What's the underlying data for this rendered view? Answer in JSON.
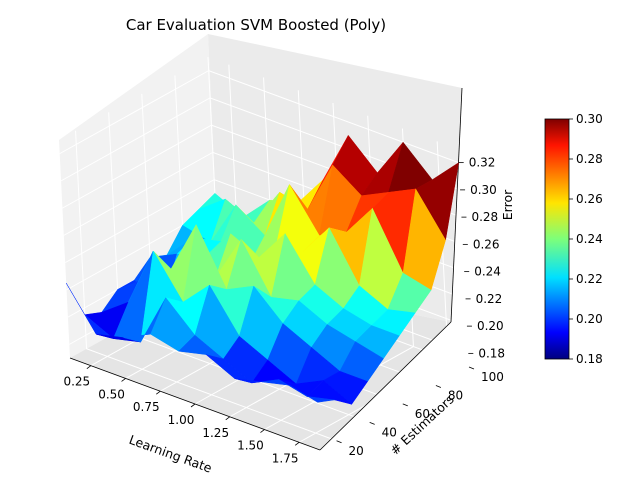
{
  "chart_data": {
    "type": "surface",
    "title": "Car Evaluation SVM Boosted (Poly)",
    "xlabel": "Learning Rate",
    "ylabel": "# Estimators",
    "zlabel": "Error",
    "x_ticks": [
      "0.25",
      "0.50",
      "0.75",
      "1.00",
      "1.25",
      "1.50",
      "1.75"
    ],
    "y_ticks": [
      "20",
      "40",
      "60",
      "80",
      "100"
    ],
    "z_ticks": [
      "0.18",
      "0.20",
      "0.22",
      "0.24",
      "0.26",
      "0.28",
      "0.30",
      "0.32"
    ],
    "colorbar_ticks": [
      "0.18",
      "0.20",
      "0.22",
      "0.24",
      "0.26",
      "0.28",
      "0.30"
    ],
    "colormap": "jet",
    "xlim": [
      0.1,
      1.9
    ],
    "ylim": [
      10,
      100
    ],
    "zlim": [
      0.17,
      0.33
    ],
    "color_range": [
      0.18,
      0.3
    ],
    "x": [
      0.1,
      0.3,
      0.5,
      0.7,
      0.9,
      1.1,
      1.3,
      1.5,
      1.7,
      1.9
    ],
    "y": [
      10,
      20,
      30,
      40,
      50,
      60,
      70,
      80,
      90,
      100
    ],
    "z": [
      [
        0.225,
        0.195,
        0.2,
        0.21,
        0.205,
        0.21,
        0.2,
        0.205,
        0.21,
        0.205
      ],
      [
        0.195,
        0.185,
        0.19,
        0.23,
        0.21,
        0.2,
        0.19,
        0.2,
        0.195,
        0.2
      ],
      [
        0.19,
        0.205,
        0.25,
        0.22,
        0.24,
        0.21,
        0.2,
        0.19,
        0.2,
        0.19
      ],
      [
        0.2,
        0.215,
        0.23,
        0.27,
        0.23,
        0.24,
        0.22,
        0.21,
        0.2,
        0.2
      ],
      [
        0.2,
        0.19,
        0.235,
        0.225,
        0.26,
        0.225,
        0.23,
        0.22,
        0.215,
        0.21
      ],
      [
        0.21,
        0.22,
        0.225,
        0.25,
        0.24,
        0.265,
        0.235,
        0.225,
        0.22,
        0.22
      ],
      [
        0.205,
        0.225,
        0.23,
        0.22,
        0.24,
        0.245,
        0.27,
        0.235,
        0.225,
        0.23
      ],
      [
        0.22,
        0.215,
        0.25,
        0.235,
        0.28,
        0.25,
        0.26,
        0.285,
        0.245,
        0.24
      ],
      [
        0.225,
        0.24,
        0.23,
        0.26,
        0.255,
        0.295,
        0.28,
        0.29,
        0.3,
        0.27
      ],
      [
        0.23,
        0.22,
        0.24,
        0.245,
        0.27,
        0.31,
        0.29,
        0.32,
        0.3,
        0.32
      ]
    ]
  }
}
